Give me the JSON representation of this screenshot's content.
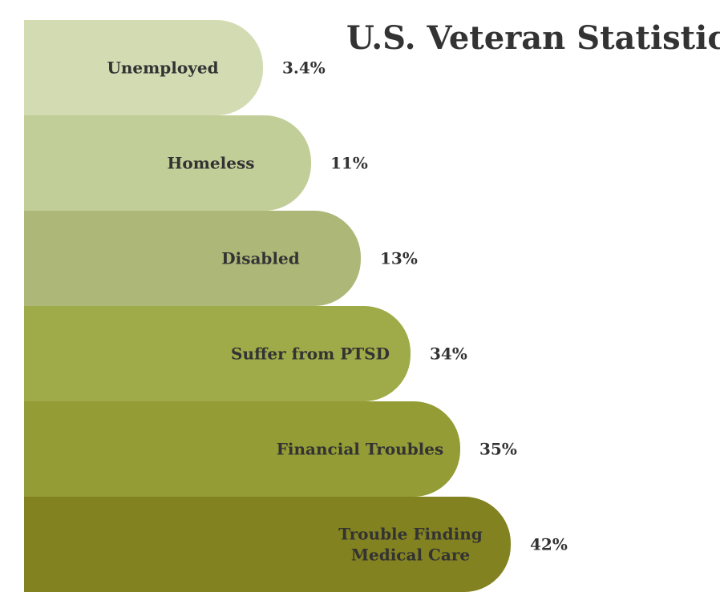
{
  "title": "U.S. Veteran Statistics",
  "colors": [
    "#d3dbb3",
    "#c2ce98",
    "#adb878",
    "#9faa48",
    "#949c36",
    "#838220"
  ],
  "chart_data": {
    "type": "bar",
    "orientation": "horizontal",
    "title": "U.S. Veteran Statistics",
    "categories": [
      "Unemployed",
      "Homeless",
      "Disabled",
      "Suffer from PTSD",
      "Financial Troubles",
      "Trouble Finding Medical Care"
    ],
    "category_lines": [
      [
        "Unemployed"
      ],
      [
        "Homeless"
      ],
      [
        "Disabled"
      ],
      [
        "Suffer from PTSD"
      ],
      [
        "Financial Troubles"
      ],
      [
        "Trouble Finding",
        "Medical Care"
      ]
    ],
    "values": [
      3.4,
      11,
      13,
      34,
      35,
      42
    ],
    "value_labels": [
      "3.4%",
      "11%",
      "13%",
      "34%",
      "35%",
      "42%"
    ],
    "unit": "%",
    "xlabel": "",
    "ylabel": "",
    "grid": false,
    "legend": "none"
  }
}
